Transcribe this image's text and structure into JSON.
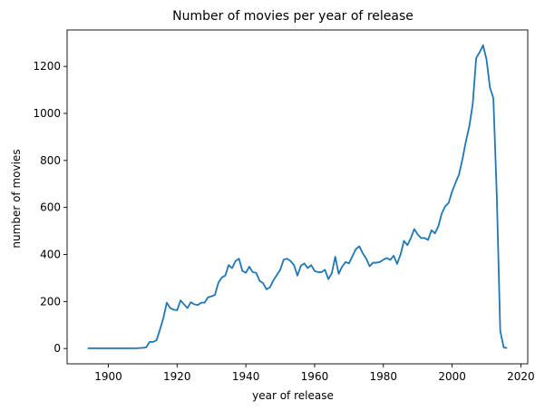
{
  "chart_data": {
    "type": "line",
    "title": "Number of movies per year of release",
    "xlabel": "year of release",
    "ylabel": "number of movies",
    "xlim": [
      1888,
      2022
    ],
    "ylim": [
      -65,
      1355
    ],
    "xticks": [
      1900,
      1920,
      1940,
      1960,
      1980,
      2000,
      2020
    ],
    "yticks": [
      0,
      200,
      400,
      600,
      800,
      1000,
      1200
    ],
    "grid": false,
    "series": [
      {
        "color": "#1f77b4",
        "x": [
          1894,
          1895,
          1896,
          1897,
          1898,
          1899,
          1900,
          1901,
          1902,
          1903,
          1904,
          1905,
          1906,
          1907,
          1908,
          1909,
          1910,
          1911,
          1912,
          1913,
          1914,
          1915,
          1916,
          1917,
          1918,
          1919,
          1920,
          1921,
          1922,
          1923,
          1924,
          1925,
          1926,
          1927,
          1928,
          1929,
          1930,
          1931,
          1932,
          1933,
          1934,
          1935,
          1936,
          1937,
          1938,
          1939,
          1940,
          1941,
          1942,
          1943,
          1944,
          1945,
          1946,
          1947,
          1948,
          1949,
          1950,
          1951,
          1952,
          1953,
          1954,
          1955,
          1956,
          1957,
          1958,
          1959,
          1960,
          1961,
          1962,
          1963,
          1964,
          1965,
          1966,
          1967,
          1968,
          1969,
          1970,
          1971,
          1972,
          1973,
          1974,
          1975,
          1976,
          1977,
          1978,
          1979,
          1980,
          1981,
          1982,
          1983,
          1984,
          1985,
          1986,
          1987,
          1988,
          1989,
          1990,
          1991,
          1992,
          1993,
          1994,
          1995,
          1996,
          1997,
          1998,
          1999,
          2000,
          2001,
          2002,
          2003,
          2004,
          2005,
          2006,
          2007,
          2008,
          2009,
          2010,
          2011,
          2012,
          2013,
          2014,
          2015,
          2016
        ],
        "y": [
          1,
          1,
          1,
          1,
          1,
          1,
          1,
          1,
          1,
          1,
          1,
          1,
          1,
          1,
          1,
          2,
          3,
          5,
          28,
          28,
          35,
          80,
          130,
          195,
          172,
          165,
          163,
          205,
          188,
          172,
          197,
          188,
          185,
          195,
          195,
          218,
          222,
          228,
          280,
          302,
          310,
          355,
          342,
          372,
          382,
          330,
          322,
          348,
          325,
          322,
          288,
          278,
          252,
          260,
          290,
          312,
          335,
          378,
          382,
          372,
          355,
          310,
          352,
          362,
          342,
          355,
          330,
          325,
          325,
          335,
          295,
          320,
          390,
          318,
          348,
          368,
          362,
          393,
          423,
          435,
          405,
          383,
          350,
          365,
          365,
          368,
          378,
          385,
          377,
          395,
          360,
          400,
          458,
          440,
          470,
          508,
          485,
          470,
          470,
          462,
          503,
          490,
          520,
          575,
          605,
          620,
          668,
          705,
          740,
          805,
          880,
          945,
          1040,
          1235,
          1260,
          1290,
          1230,
          1110,
          1065,
          650,
          75,
          5,
          2
        ]
      }
    ]
  }
}
